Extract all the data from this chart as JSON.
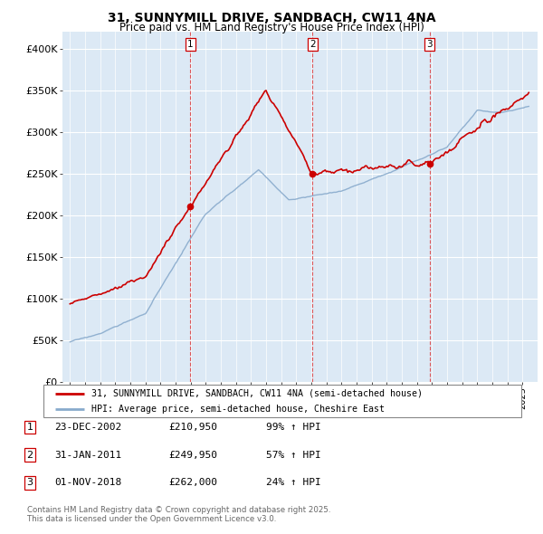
{
  "title": "31, SUNNYMILL DRIVE, SANDBACH, CW11 4NA",
  "subtitle": "Price paid vs. HM Land Registry's House Price Index (HPI)",
  "legend_line1": "31, SUNNYMILL DRIVE, SANDBACH, CW11 4NA (semi-detached house)",
  "legend_line2": "HPI: Average price, semi-detached house, Cheshire East",
  "footer1": "Contains HM Land Registry data © Crown copyright and database right 2025.",
  "footer2": "This data is licensed under the Open Government Licence v3.0.",
  "sale_color": "#cc0000",
  "hpi_color": "#88aacc",
  "vline_color": "#dd3333",
  "bg_color": "#dce9f5",
  "ylim": [
    0,
    420000
  ],
  "yticks": [
    0,
    50000,
    100000,
    150000,
    200000,
    250000,
    300000,
    350000,
    400000
  ],
  "ytick_labels": [
    "£0",
    "£50K",
    "£100K",
    "£150K",
    "£200K",
    "£250K",
    "£300K",
    "£350K",
    "£400K"
  ],
  "xmin": 1995,
  "xmax": 2026,
  "sales": [
    {
      "date_num": 2002.97,
      "price": 210950,
      "label": "1"
    },
    {
      "date_num": 2011.08,
      "price": 249950,
      "label": "2"
    },
    {
      "date_num": 2018.83,
      "price": 262000,
      "label": "3"
    }
  ],
  "table_rows": [
    {
      "num": "1",
      "date": "23-DEC-2002",
      "price": "£210,950",
      "change": "99% ↑ HPI"
    },
    {
      "num": "2",
      "date": "31-JAN-2011",
      "price": "£249,950",
      "change": "57% ↑ HPI"
    },
    {
      "num": "3",
      "date": "01-NOV-2018",
      "price": "£262,000",
      "change": "24% ↑ HPI"
    }
  ]
}
